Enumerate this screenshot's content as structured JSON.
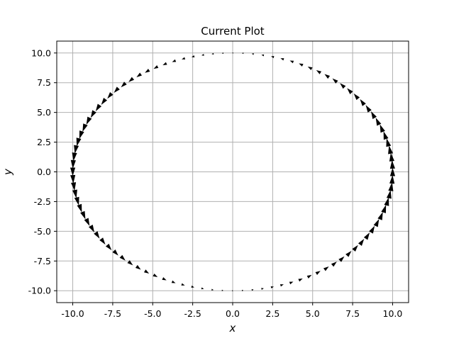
{
  "chart_data": {
    "type": "quiver",
    "title": "Current Plot",
    "xlabel": "x",
    "ylabel": "y",
    "xlim": [
      -11,
      11
    ],
    "ylim": [
      -11,
      11
    ],
    "xticks": [
      "-10.0",
      "-7.5",
      "-5.0",
      "-2.5",
      "0.0",
      "2.5",
      "5.0",
      "7.5",
      "10.0"
    ],
    "xtick_values": [
      -10,
      -7.5,
      -5,
      -2.5,
      0,
      2.5,
      5,
      7.5,
      10
    ],
    "yticks": [
      "10.0",
      "7.5",
      "5.0",
      "2.5",
      "0.0",
      "-2.5",
      "-5.0",
      "-7.5",
      "-10.0"
    ],
    "ytick_values": [
      10,
      7.5,
      5,
      2.5,
      0,
      -2.5,
      -5,
      -7.5,
      -10
    ],
    "grid": true,
    "curve": "circle",
    "radius": 10,
    "arrow_count": 100,
    "arrow_color": "#000000",
    "direction": "counter-clockwise"
  }
}
